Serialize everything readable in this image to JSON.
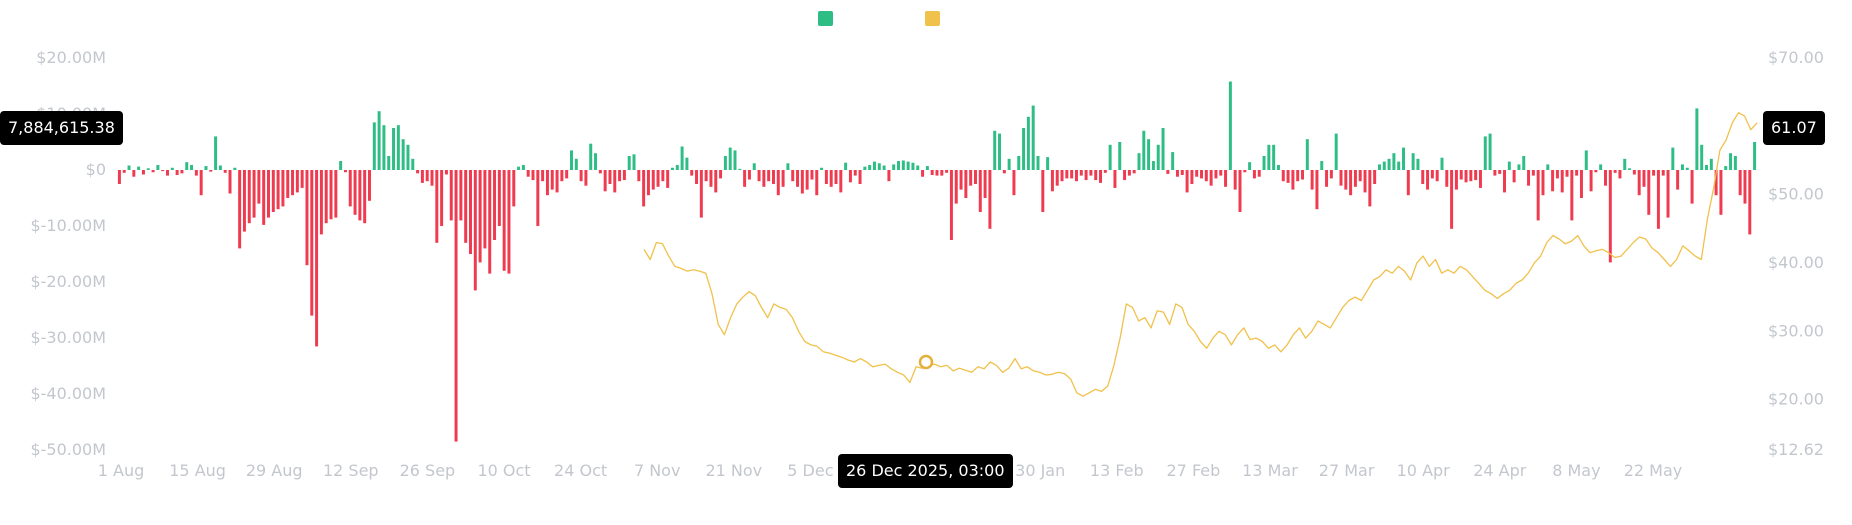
{
  "chart_data": {
    "type": "bar",
    "title": "",
    "legend": [
      {
        "label": "",
        "color": "#2ebd85",
        "position": "top-center"
      },
      {
        "label": "",
        "color": "#f0c14b",
        "position": "top-center"
      }
    ],
    "y_left": {
      "ticks": [
        "$20.00M",
        "$10.00M",
        "$0",
        "$-10.00M",
        "$-20.00M",
        "$-30.00M",
        "$-40.00M",
        "$-50.00M"
      ],
      "min": -50,
      "max": 20,
      "unit": "M USD"
    },
    "y_right": {
      "ticks": [
        "$70.00",
        "$60.00",
        "$50.00",
        "$40.00",
        "$30.00",
        "$20.00",
        "$12.62"
      ],
      "min": 12.62,
      "max": 70
    },
    "x_ticks": [
      "1 Aug",
      "15 Aug",
      "29 Aug",
      "12 Sep",
      "26 Sep",
      "10 Oct",
      "24 Oct",
      "7 Nov",
      "21 Nov",
      "5 Dec",
      "26 Dec 2025, 03:00",
      "16 Jan",
      "30 Jan",
      "13 Feb",
      "27 Feb",
      "13 Mar",
      "27 Mar",
      "10 Apr",
      "24 Apr",
      "8 May",
      "22 May"
    ],
    "series": [
      {
        "type": "bar",
        "positive_color": "#2ebd85",
        "negative_color": "#ef3b4f",
        "values": [
          -2.5,
          -0.5,
          0.8,
          -1.2,
          0.6,
          -0.8,
          0.3,
          -0.4,
          0.9,
          -0.2,
          -1.0,
          0.4,
          -0.9,
          -0.6,
          1.4,
          0.9,
          -1.0,
          -4.5,
          0.7,
          -0.3,
          6.0,
          0.8,
          -0.5,
          -4.2,
          0.4,
          -14.0,
          -11.0,
          -9.5,
          -8.5,
          -6.0,
          -9.8,
          -8.5,
          -7.5,
          -7.0,
          -6.5,
          -5.0,
          -4.5,
          -4.0,
          -3.2,
          -17.0,
          -26.0,
          -31.5,
          -11.5,
          -9.5,
          -8.8,
          -8.5,
          1.6,
          -0.4,
          -6.5,
          -8.0,
          -9.0,
          -9.5,
          -5.5,
          8.5,
          10.5,
          8.0,
          2.5,
          7.5,
          8.0,
          5.5,
          4.5,
          2.0,
          -0.6,
          -2.3,
          -2.0,
          -2.8,
          -13.0,
          -10.0,
          -0.8,
          -9.0,
          -48.5,
          -9.0,
          -13.0,
          -15.0,
          -21.5,
          -16.5,
          -14.0,
          -18.5,
          -12.5,
          -10.0,
          -18.0,
          -18.5,
          -6.5,
          0.6,
          0.9,
          -1.2,
          -1.8,
          -10.0,
          -2.0,
          -4.5,
          -3.5,
          -4.0,
          -2.0,
          -1.5,
          3.5,
          2.0,
          -2.0,
          -2.8,
          4.7,
          3.0,
          -0.6,
          -3.8,
          -2.5,
          -4.0,
          -2.0,
          -1.8,
          2.5,
          2.8,
          -2.0,
          -6.5,
          -4.5,
          -3.5,
          -3.0,
          -2.0,
          -3.2,
          0.4,
          0.9,
          4.2,
          2.2,
          -1.0,
          -2.5,
          -8.5,
          -2.0,
          -3.0,
          -4.0,
          -1.5,
          2.5,
          4.0,
          3.5,
          0.2,
          -3.0,
          -1.7,
          1.2,
          -2.0,
          -3.0,
          -2.0,
          -2.5,
          -4.5,
          -3.0,
          1.2,
          -2.0,
          -3.0,
          -4.2,
          -3.5,
          -1.7,
          -4.5,
          0.4,
          -2.5,
          -3.0,
          -2.5,
          -4.0,
          1.3,
          -2.2,
          -1.0,
          -2.5,
          0.6,
          0.9,
          1.5,
          1.2,
          0.8,
          -2.0,
          1.0,
          1.6,
          1.7,
          1.5,
          1.3,
          0.8,
          -1.2,
          0.7,
          -0.9,
          -1.0,
          -1.0,
          -0.5,
          -12.5,
          -6.0,
          -3.5,
          -5.0,
          -2.8,
          -2.5,
          -7.5,
          -5.0,
          -10.5,
          7.0,
          6.5,
          -0.6,
          2.0,
          -4.5,
          2.5,
          7.5,
          9.5,
          11.5,
          2.5,
          -7.5,
          2.3,
          -3.8,
          -2.8,
          -2.0,
          -1.5,
          -1.5,
          -2.0,
          -1.0,
          -1.8,
          -1.0,
          -1.8,
          -2.3,
          -0.5,
          4.5,
          -3.2,
          5.0,
          -1.8,
          -1.0,
          -0.6,
          3.0,
          7.0,
          5.5,
          1.6,
          4.5,
          7.5,
          -0.7,
          3.2,
          -1.2,
          -0.9,
          -4.0,
          -2.5,
          -1.2,
          -1.5,
          -2.0,
          -2.8,
          -1.5,
          -1.0,
          -3.0,
          15.8,
          -3.5,
          -7.5,
          -0.4,
          1.4,
          -1.5,
          -1.2,
          2.5,
          4.5,
          4.5,
          0.9,
          -2.0,
          -2.3,
          -3.5,
          -2.0,
          -1.7,
          5.5,
          -3.5,
          -7.0,
          1.6,
          -3.0,
          -1.5,
          6.5,
          -2.8,
          -3.5,
          -4.5,
          -3.0,
          -2.0,
          -4.0,
          -6.5,
          -2.5,
          1.0,
          1.5,
          2.0,
          3.0,
          1.5,
          4.0,
          -4.5,
          3.0,
          2.0,
          -2.5,
          -3.5,
          -1.5,
          -2.0,
          2.2,
          -3.0,
          -10.5,
          -3.5,
          -1.7,
          -2.2,
          -2.0,
          -1.8,
          -3.2,
          6.0,
          6.5,
          -1.0,
          -0.7,
          -4.0,
          1.5,
          -2.2,
          1.0,
          2.5,
          -2.8,
          -1.0,
          -9.0,
          -4.5,
          1.0,
          -3.8,
          -1.5,
          -4.0,
          -1.2,
          -9.0,
          -1.0,
          -5.0,
          3.5,
          -3.8,
          -0.4,
          1.0,
          -2.8,
          -16.5,
          -0.5,
          -1.5,
          2.0,
          0.3,
          -0.8,
          -4.5,
          -3.0,
          -8.0,
          -1.0,
          -10.5,
          -1.0,
          -8.5,
          4.0,
          -3.5,
          1.0,
          0.4,
          -6.0,
          11.0,
          4.5,
          0.9,
          2.0,
          -4.5,
          -8.0,
          0.7,
          3.0,
          2.5,
          -4.5,
          -6.0,
          -11.5,
          5.0
        ]
      },
      {
        "type": "line",
        "color": "#f0c14b",
        "values": [
          42.0,
          40.5,
          43.0,
          42.8,
          41.0,
          39.5,
          39.2,
          38.8,
          39.0,
          38.8,
          38.5,
          35.5,
          31.0,
          29.5,
          32.0,
          34.0,
          35.0,
          35.8,
          35.2,
          33.5,
          32.0,
          34.0,
          33.5,
          33.2,
          32.0,
          30.0,
          28.5,
          28.0,
          27.8,
          27.0,
          26.8,
          26.5,
          26.2,
          25.8,
          25.5,
          26.0,
          25.5,
          24.8,
          25.0,
          25.2,
          24.5,
          24.0,
          23.6,
          22.5,
          24.8,
          24.6,
          25.0,
          25.2,
          24.8,
          25.0,
          24.2,
          24.6,
          24.3,
          24.0,
          24.8,
          24.5,
          25.5,
          25.0,
          24.0,
          24.6,
          26.0,
          24.5,
          24.8,
          24.2,
          24.0,
          23.6,
          23.7,
          24.0,
          23.8,
          23.0,
          21.0,
          20.5,
          21.0,
          21.5,
          21.2,
          22.0,
          25.0,
          29.0,
          34.0,
          33.5,
          31.5,
          32.0,
          30.5,
          33.0,
          32.8,
          31.0,
          34.0,
          33.5,
          31.0,
          30.0,
          28.5,
          27.5,
          29.0,
          30.0,
          29.5,
          28.0,
          29.5,
          30.5,
          28.8,
          29.0,
          28.5,
          27.5,
          28.0,
          27.0,
          28.0,
          29.5,
          30.5,
          29.0,
          30.0,
          31.5,
          31.0,
          30.5,
          32.0,
          33.5,
          34.5,
          35.0,
          34.5,
          36.0,
          37.5,
          38.0,
          39.0,
          38.5,
          39.5,
          38.8,
          37.5,
          40.0,
          41.0,
          39.5,
          40.5,
          38.5,
          39.0,
          38.5,
          39.5,
          39.0,
          38.0,
          37.0,
          36.0,
          35.5,
          34.8,
          35.5,
          36.0,
          37.0,
          37.5,
          38.5,
          40.0,
          41.0,
          43.0,
          44.0,
          43.5,
          42.8,
          43.2,
          44.0,
          42.5,
          41.5,
          41.8,
          42.0,
          41.5,
          40.8,
          41.0,
          42.0,
          43.0,
          43.8,
          43.5,
          42.2,
          41.5,
          40.5,
          39.5,
          40.5,
          42.5,
          41.8,
          41.0,
          40.5,
          46.5,
          51.0,
          56.5,
          58.0,
          60.5,
          62.0,
          61.5,
          59.5,
          60.5
        ]
      }
    ]
  },
  "crosshair": {
    "left_value": "7,884,615.38",
    "right_value": "61.07",
    "x_label": "26 Dec 2025, 03:00"
  }
}
